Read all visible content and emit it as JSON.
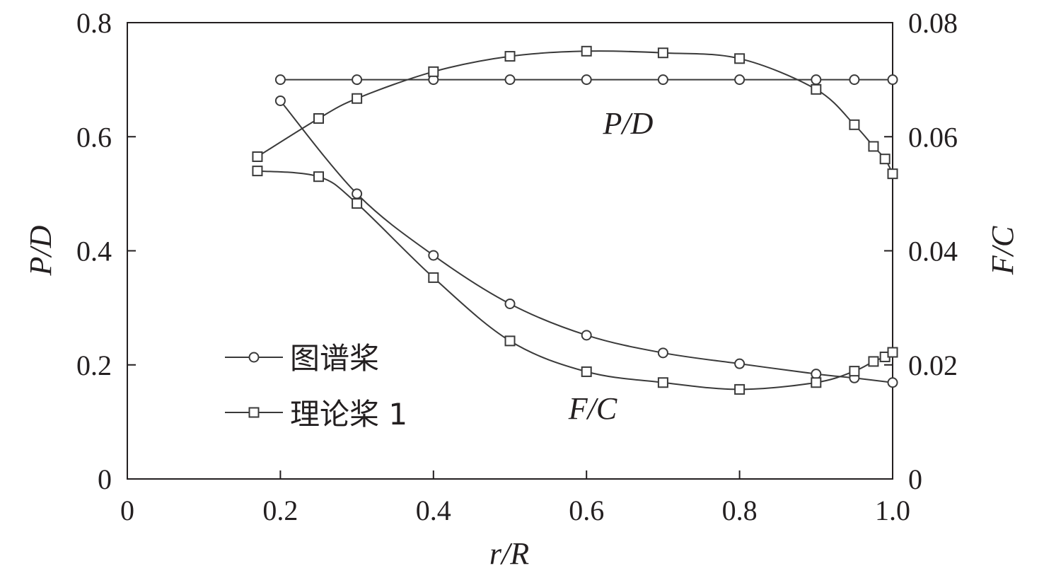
{
  "chart_data": {
    "type": "line",
    "xlabel": "r/R",
    "ylabel_left": "P/D",
    "ylabel_right": "F/C",
    "xlim": [
      0,
      1.0
    ],
    "ylim_left": [
      0,
      0.8
    ],
    "ylim_right": [
      0,
      0.08
    ],
    "x_ticks": [
      "0",
      "0.2",
      "0.4",
      "0.6",
      "0.8",
      "1.0"
    ],
    "y_left_ticks": [
      "0",
      "0.2",
      "0.4",
      "0.6",
      "0.8"
    ],
    "y_right_ticks": [
      "0",
      "0.02",
      "0.04",
      "0.06",
      "0.08"
    ],
    "grid": false,
    "legend_position": "bottom-left",
    "legend": [
      {
        "label": "图谱桨",
        "marker": "circle"
      },
      {
        "label": "理论桨 1",
        "marker": "square"
      }
    ],
    "annotations": [
      {
        "text": "P/D",
        "near": "upper curves"
      },
      {
        "text": "F/C",
        "near": "lower curves"
      }
    ],
    "series": [
      {
        "name": "图谱桨",
        "quantity": "P/D",
        "axis": "left",
        "marker": "circle",
        "x": [
          0.2,
          0.3,
          0.4,
          0.5,
          0.6,
          0.7,
          0.8,
          0.9,
          0.95,
          1.0
        ],
        "y": [
          0.7,
          0.7,
          0.7,
          0.7,
          0.7,
          0.7,
          0.7,
          0.7,
          0.7,
          0.7
        ]
      },
      {
        "name": "理论桨 1",
        "quantity": "P/D",
        "axis": "left",
        "marker": "square",
        "x": [
          0.17,
          0.25,
          0.3,
          0.4,
          0.5,
          0.6,
          0.7,
          0.8,
          0.9,
          0.95,
          0.975,
          0.99,
          1.0
        ],
        "y": [
          0.565,
          0.632,
          0.667,
          0.714,
          0.741,
          0.75,
          0.747,
          0.737,
          0.683,
          0.621,
          0.583,
          0.561,
          0.535
        ]
      },
      {
        "name": "图谱桨",
        "quantity": "F/C",
        "axis": "right",
        "marker": "circle",
        "x": [
          0.2,
          0.3,
          0.4,
          0.5,
          0.6,
          0.7,
          0.8,
          0.9,
          0.95,
          1.0
        ],
        "y": [
          0.0663,
          0.05,
          0.0392,
          0.0307,
          0.0252,
          0.0221,
          0.0202,
          0.0184,
          0.0177,
          0.0169
        ]
      },
      {
        "name": "理论桨 1",
        "quantity": "F/C",
        "axis": "right",
        "marker": "square",
        "x": [
          0.17,
          0.25,
          0.3,
          0.4,
          0.5,
          0.6,
          0.7,
          0.8,
          0.9,
          0.95,
          0.975,
          0.99,
          1.0
        ],
        "y": [
          0.054,
          0.053,
          0.0483,
          0.0353,
          0.0242,
          0.0188,
          0.0169,
          0.0157,
          0.0169,
          0.0189,
          0.0206,
          0.0214,
          0.0222
        ]
      }
    ]
  }
}
